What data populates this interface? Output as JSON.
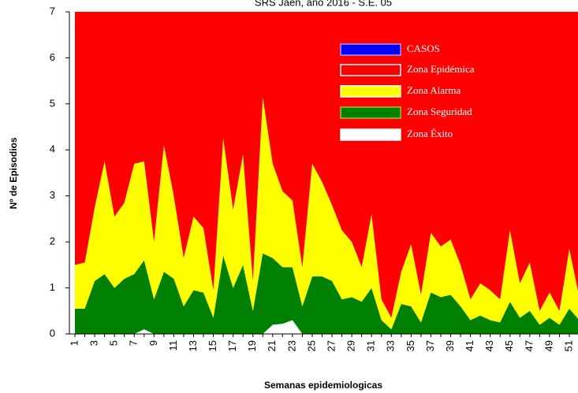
{
  "chart_data": {
    "type": "stacked-area",
    "title": "SRS Jaén, año 2016 -   S.E. 05",
    "x_label": "Semanas epidemiologicas",
    "y_label": "Nº de Episodios",
    "categories": [
      "1",
      null,
      "3",
      null,
      "5",
      null,
      "7",
      null,
      "9",
      null,
      "11",
      null,
      "13",
      null,
      "15",
      null,
      "17",
      null,
      "19",
      null,
      "21",
      null,
      "23",
      null,
      "25",
      null,
      "27",
      null,
      "29",
      null,
      "31",
      null,
      "33",
      null,
      "35",
      null,
      "37",
      null,
      "39",
      null,
      "41",
      null,
      "43",
      null,
      "45",
      null,
      "47",
      null,
      "49",
      null,
      "51",
      null
    ],
    "ylim": [
      0,
      7
    ],
    "yticks": [
      0,
      1,
      2,
      3,
      4,
      5,
      6,
      7
    ],
    "series": [
      {
        "name": "CASOS",
        "color": "#0000ff",
        "values": [
          null,
          null,
          null,
          null,
          null,
          null,
          null,
          null,
          null,
          null,
          null,
          null,
          null,
          null,
          null,
          null,
          null,
          null,
          null,
          null,
          null,
          null,
          null,
          null,
          null,
          null,
          null,
          null,
          null,
          null,
          null,
          null,
          null,
          null,
          null,
          null,
          null,
          null,
          null,
          null,
          null,
          null,
          null,
          null,
          null,
          null,
          null,
          null,
          null,
          null,
          null,
          null
        ]
      },
      {
        "name": "Zona Epidémica",
        "color": "#ff0000",
        "values": [
          5.5,
          5.45,
          4.25,
          3.25,
          4.45,
          4.15,
          3.3,
          3.25,
          5.0,
          2.9,
          4.0,
          5.35,
          4.45,
          4.7,
          6.05,
          2.75,
          4.3,
          3.1,
          5.85,
          1.85,
          3.3,
          3.9,
          4.1,
          5.55,
          3.3,
          3.7,
          4.2,
          4.75,
          5.0,
          5.55,
          4.4,
          6.25,
          6.65,
          5.65,
          5.05,
          6.15,
          4.8,
          5.1,
          4.95,
          5.5,
          6.25,
          5.9,
          6.05,
          6.25,
          4.75,
          5.9,
          5.45,
          6.5,
          6.1,
          6.5,
          5.15,
          6.2
        ]
      },
      {
        "name": "Zona Alarma",
        "color": "#ffff00",
        "values": [
          0.95,
          1.0,
          1.6,
          2.45,
          1.55,
          1.65,
          2.4,
          2.15,
          1.25,
          2.75,
          1.8,
          1.05,
          1.6,
          1.4,
          0.6,
          2.55,
          1.7,
          2.4,
          0.65,
          3.4,
          2.05,
          1.65,
          1.45,
          0.85,
          2.45,
          2.05,
          1.65,
          1.5,
          1.2,
          0.75,
          1.6,
          0.45,
          0.25,
          0.7,
          1.35,
          0.6,
          1.3,
          1.1,
          1.2,
          0.9,
          0.45,
          0.7,
          0.65,
          0.5,
          1.55,
          0.75,
          1.05,
          0.3,
          0.55,
          0.3,
          1.3,
          0.5
        ]
      },
      {
        "name": "Zona Seguridad",
        "color": "#008000",
        "values": [
          0.55,
          0.55,
          1.15,
          1.3,
          1.0,
          1.2,
          1.3,
          1.5,
          0.75,
          1.35,
          1.2,
          0.6,
          0.95,
          0.9,
          0.35,
          1.7,
          1.0,
          1.5,
          0.5,
          1.75,
          1.45,
          1.23,
          1.15,
          0.6,
          1.25,
          1.25,
          1.15,
          0.75,
          0.8,
          0.7,
          1.0,
          0.3,
          0.1,
          0.65,
          0.6,
          0.25,
          0.9,
          0.8,
          0.85,
          0.6,
          0.3,
          0.4,
          0.3,
          0.25,
          0.7,
          0.35,
          0.5,
          0.2,
          0.35,
          0.2,
          0.55,
          0.3
        ]
      },
      {
        "name": "Zona Éxito",
        "color": "#ffffff",
        "values": [
          0,
          0,
          0,
          0,
          0,
          0,
          0,
          0.1,
          0,
          0,
          0,
          0,
          0,
          0,
          0,
          0,
          0,
          0,
          0,
          0,
          0.2,
          0.22,
          0.3,
          0,
          0,
          0,
          0,
          0,
          0,
          0,
          0,
          0,
          0,
          0,
          0,
          0,
          0,
          0,
          0,
          0,
          0,
          0,
          0,
          0,
          0,
          0,
          0,
          0,
          0,
          0,
          0,
          0
        ]
      }
    ]
  }
}
